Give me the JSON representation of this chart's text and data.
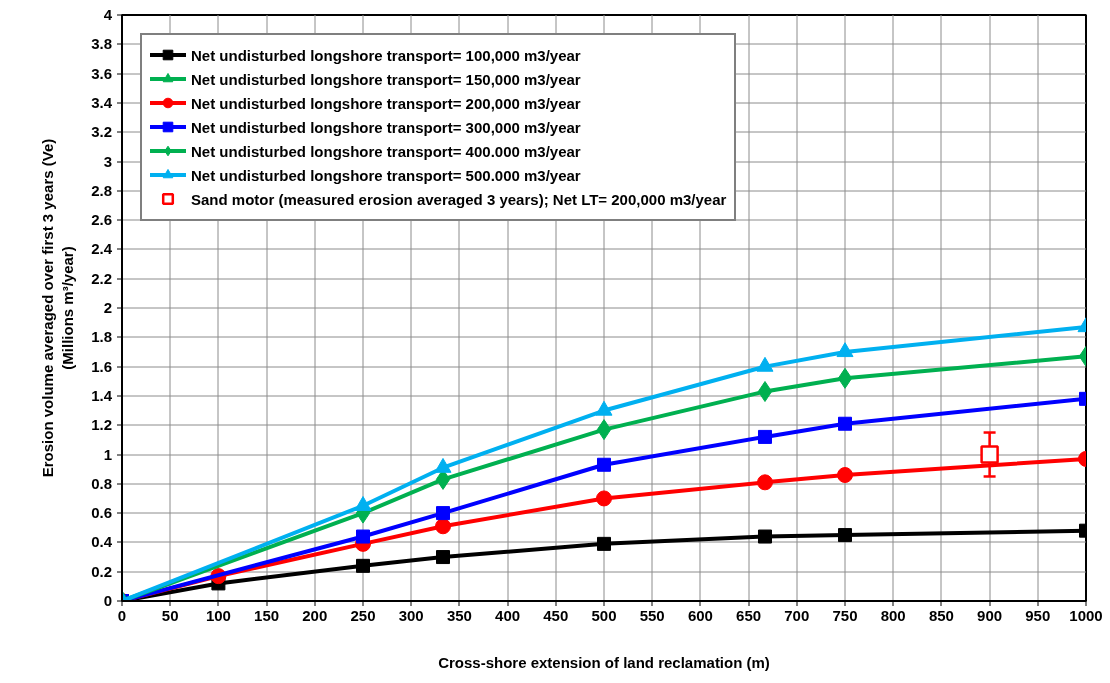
{
  "chart_data": {
    "type": "line",
    "xlabel": "Cross-shore extension of land reclamation (m)",
    "ylabel": "Erosion volume averaged over first 3 years (Ve)\n(Millions m³/year)",
    "xlim": [
      0,
      1000
    ],
    "xticks": [
      0,
      50,
      100,
      150,
      200,
      250,
      300,
      350,
      400,
      450,
      500,
      550,
      600,
      650,
      700,
      750,
      800,
      850,
      900,
      950,
      1000
    ],
    "ylim": [
      0,
      4
    ],
    "yticks": [
      0,
      0.2,
      0.4,
      0.6,
      0.8,
      1,
      1.2,
      1.4,
      1.6,
      1.8,
      2,
      2.2,
      2.4,
      2.6,
      2.8,
      3,
      3.2,
      3.4,
      3.6,
      3.8,
      4
    ],
    "grid": true,
    "legend": "top left",
    "line_style": "solid",
    "series": [
      {
        "name": "Net undisturbed longshore transport= 100,000 m3/year",
        "color": "#000000",
        "marker": "square",
        "x": [
          0,
          100,
          250,
          333,
          500,
          667,
          750,
          1000
        ],
        "values": [
          0,
          0.12,
          0.24,
          0.3,
          0.39,
          0.44,
          0.45,
          0.48
        ]
      },
      {
        "name": "Net undisturbed longshore transport= 150,000 m3/year",
        "color": "#00b050",
        "marker": "triangle",
        "x": [
          null
        ],
        "values": [
          null
        ]
      },
      {
        "name": "Net undisturbed longshore transport= 200,000 m3/year",
        "color": "#ff0000",
        "marker": "circle",
        "x": [
          0,
          100,
          250,
          333,
          500,
          667,
          750,
          1000
        ],
        "values": [
          0,
          0.17,
          0.39,
          0.51,
          0.7,
          0.81,
          0.86,
          0.97
        ]
      },
      {
        "name": "Net undisturbed longshore transport= 300,000 m3/year",
        "color": "#0000ff",
        "marker": "square",
        "x": [
          0,
          250,
          333,
          500,
          667,
          750,
          1000
        ],
        "values": [
          0,
          0.44,
          0.6,
          0.93,
          1.12,
          1.21,
          1.38
        ]
      },
      {
        "name": "Net undisturbed longshore transport= 400.000 m3/year",
        "color": "#00b050",
        "marker": "diamond",
        "x": [
          0,
          250,
          333,
          500,
          667,
          750,
          1000
        ],
        "values": [
          0,
          0.6,
          0.83,
          1.17,
          1.43,
          1.52,
          1.67
        ]
      },
      {
        "name": "Net undisturbed longshore transport= 500.000 m3/year",
        "color": "#00b0f0",
        "marker": "triangle",
        "x": [
          0,
          250,
          333,
          500,
          667,
          750,
          1000
        ],
        "values": [
          0,
          0.65,
          0.91,
          1.3,
          1.6,
          1.7,
          1.87
        ]
      },
      {
        "name": "Sand motor (measured erosion averaged 3 years); Net LT= 200,000 m3/year",
        "type": "scatter",
        "color": "#ff0000",
        "marker": "square",
        "x": [
          900
        ],
        "values": [
          1.0
        ],
        "errors": [
          [
            0.85,
            1.15
          ]
        ]
      }
    ]
  }
}
